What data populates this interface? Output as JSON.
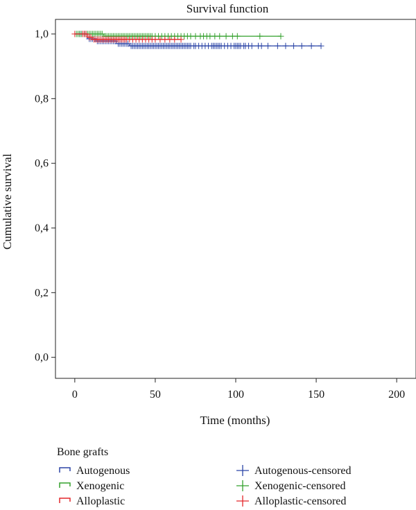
{
  "chart_data": {
    "type": "line",
    "title": "Survival function",
    "xlabel": "Time (months)",
    "ylabel": "Cumulative survival",
    "xlim": [
      -12,
      212
    ],
    "ylim": [
      -0.065,
      1.045
    ],
    "x_ticks": [
      {
        "value": 0,
        "label": "0"
      },
      {
        "value": 50,
        "label": "50"
      },
      {
        "value": 100,
        "label": "100"
      },
      {
        "value": 150,
        "label": "150"
      },
      {
        "value": 200,
        "label": "200"
      }
    ],
    "y_ticks": [
      {
        "value": 0.0,
        "label": "0,0"
      },
      {
        "value": 0.2,
        "label": "0,2"
      },
      {
        "value": 0.4,
        "label": "0,4"
      },
      {
        "value": 0.6,
        "label": "0,6"
      },
      {
        "value": 0.8,
        "label": "0,8"
      },
      {
        "value": 1.0,
        "label": "1,0"
      }
    ],
    "legend": {
      "title": "Bone grafts",
      "placement": "bottom",
      "entries": [
        "Autogenous",
        "Xenogenic",
        "Alloplastic",
        "Autogenous-censored",
        "Xenogenic-censored",
        "Alloplastic-censored"
      ]
    },
    "series": [
      {
        "name": "Autogenous",
        "color": "#2b44a6",
        "steps": [
          [
            0,
            1.0
          ],
          [
            8,
            0.985
          ],
          [
            13,
            0.978
          ],
          [
            26,
            0.97
          ],
          [
            34,
            0.963
          ],
          [
            153,
            0.963
          ]
        ],
        "censored": [
          2,
          3,
          4,
          5,
          6,
          7,
          9,
          10,
          11,
          12,
          14,
          15,
          16,
          17,
          18,
          19,
          20,
          21,
          22,
          23,
          24,
          25,
          27,
          28,
          29,
          30,
          31,
          32,
          33,
          35,
          36,
          37,
          38,
          39,
          40,
          41,
          42,
          43,
          44,
          45,
          46,
          47,
          48,
          49,
          50,
          51,
          52,
          53,
          54,
          55,
          56,
          57,
          58,
          59,
          60,
          61,
          62,
          63,
          64,
          65,
          66,
          67,
          68,
          69,
          70,
          71,
          72,
          74,
          75,
          77,
          79,
          81,
          83,
          85,
          86,
          87,
          88,
          89,
          90,
          91,
          93,
          95,
          97,
          99,
          100,
          101,
          102,
          103,
          105,
          106,
          108,
          110,
          114,
          116,
          120,
          126,
          131,
          136,
          141,
          147,
          153
        ]
      },
      {
        "name": "Xenogenic",
        "color": "#33a02c",
        "steps": [
          [
            0,
            1.0
          ],
          [
            18,
            0.993
          ],
          [
            65,
            0.993
          ],
          [
            128,
            0.993
          ]
        ],
        "censored": [
          1,
          2,
          3,
          4,
          5,
          6,
          7,
          8,
          9,
          10,
          11,
          12,
          13,
          14,
          15,
          16,
          17,
          19,
          20,
          21,
          22,
          23,
          24,
          25,
          26,
          27,
          28,
          29,
          30,
          31,
          32,
          33,
          34,
          35,
          36,
          37,
          38,
          39,
          40,
          41,
          42,
          43,
          44,
          45,
          46,
          47,
          48,
          50,
          52,
          54,
          56,
          58,
          60,
          62,
          64,
          66,
          68,
          70,
          72,
          75,
          78,
          80,
          82,
          84,
          87,
          90,
          94,
          98,
          101,
          115,
          128
        ]
      },
      {
        "name": "Alloplastic",
        "color": "#e3262a",
        "steps": [
          [
            0,
            1.0
          ],
          [
            8,
            0.99
          ],
          [
            11,
            0.983
          ],
          [
            66,
            0.983
          ]
        ],
        "censored": [
          0,
          5,
          6,
          7,
          9,
          10,
          12,
          13,
          14,
          15,
          16,
          17,
          18,
          19,
          20,
          21,
          22,
          23,
          24,
          25,
          26,
          27,
          28,
          29,
          30,
          31,
          32,
          34,
          36,
          38,
          40,
          42,
          44,
          46,
          48,
          50,
          53,
          56,
          59,
          62,
          66
        ]
      }
    ]
  }
}
